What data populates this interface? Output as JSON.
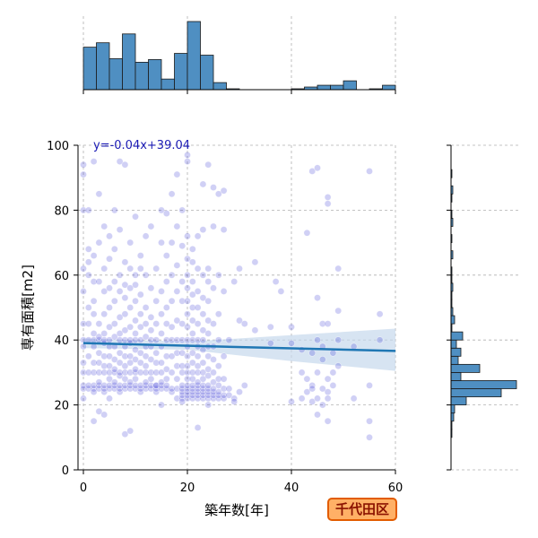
{
  "badge": {
    "label": "千代田区",
    "bg": "#ffb066",
    "border": "#e25c00",
    "text_color": "#8a1200"
  },
  "colors": {
    "point": "#2a2ad0",
    "regression_line": "#1f77b4",
    "ci_band": "#c6d9ec",
    "hist_fill": "#4f8fc2",
    "grid": "#b0b0b0"
  },
  "chart_data": {
    "type": "scatter",
    "title": "",
    "xlabel": "築年数[年]",
    "ylabel": "専有面積[m2]",
    "xlim": [
      0,
      60
    ],
    "ylim": [
      0,
      100
    ],
    "xticks": [
      0,
      20,
      40,
      60
    ],
    "yticks": [
      0,
      20,
      40,
      60,
      80,
      100
    ],
    "grid": true,
    "point_alpha": 0.22,
    "regression": {
      "equation": "y=-0.04x+39.04",
      "slope": -0.04,
      "intercept": 39.04,
      "ci_at_x": [
        [
          0,
          37.5,
          40.5
        ],
        [
          20,
          37.0,
          39.5
        ],
        [
          40,
          33.5,
          41.5
        ],
        [
          60,
          30.5,
          43.5
        ]
      ]
    },
    "points": [
      [
        0,
        26
      ],
      [
        0,
        25
      ],
      [
        0,
        22
      ],
      [
        0,
        30
      ],
      [
        0,
        33
      ],
      [
        0,
        38
      ],
      [
        0,
        40
      ],
      [
        0,
        45
      ],
      [
        0,
        55
      ],
      [
        0,
        62
      ],
      [
        0,
        80
      ],
      [
        0,
        91
      ],
      [
        0,
        94
      ],
      [
        1,
        25
      ],
      [
        1,
        26
      ],
      [
        1,
        30
      ],
      [
        1,
        35
      ],
      [
        1,
        40
      ],
      [
        1,
        45
      ],
      [
        1,
        50
      ],
      [
        1,
        60
      ],
      [
        1,
        64
      ],
      [
        1,
        68
      ],
      [
        1,
        80
      ],
      [
        2,
        25
      ],
      [
        2,
        26
      ],
      [
        2,
        24
      ],
      [
        2,
        30
      ],
      [
        2,
        33
      ],
      [
        2,
        38
      ],
      [
        2,
        40
      ],
      [
        2,
        42
      ],
      [
        2,
        48
      ],
      [
        2,
        52
      ],
      [
        2,
        58
      ],
      [
        2,
        66
      ],
      [
        2,
        95
      ],
      [
        2,
        15
      ],
      [
        3,
        25
      ],
      [
        3,
        26
      ],
      [
        3,
        27
      ],
      [
        3,
        30
      ],
      [
        3,
        33
      ],
      [
        3,
        36
      ],
      [
        3,
        40
      ],
      [
        3,
        41
      ],
      [
        3,
        45
      ],
      [
        3,
        58
      ],
      [
        3,
        70
      ],
      [
        3,
        85
      ],
      [
        3,
        18
      ],
      [
        4,
        24
      ],
      [
        4,
        25
      ],
      [
        4,
        26
      ],
      [
        4,
        30
      ],
      [
        4,
        32
      ],
      [
        4,
        35
      ],
      [
        4,
        39
      ],
      [
        4,
        40
      ],
      [
        4,
        42
      ],
      [
        4,
        48
      ],
      [
        4,
        55
      ],
      [
        4,
        62
      ],
      [
        4,
        75
      ],
      [
        4,
        17
      ],
      [
        5,
        25
      ],
      [
        5,
        26
      ],
      [
        5,
        28
      ],
      [
        5,
        30
      ],
      [
        5,
        32
      ],
      [
        5,
        35
      ],
      [
        5,
        38
      ],
      [
        5,
        40
      ],
      [
        5,
        44
      ],
      [
        5,
        50
      ],
      [
        5,
        56
      ],
      [
        5,
        65
      ],
      [
        5,
        72
      ],
      [
        5,
        22
      ],
      [
        6,
        25
      ],
      [
        6,
        26
      ],
      [
        6,
        27
      ],
      [
        6,
        30
      ],
      [
        6,
        31
      ],
      [
        6,
        34
      ],
      [
        6,
        38
      ],
      [
        6,
        41
      ],
      [
        6,
        45
      ],
      [
        6,
        52
      ],
      [
        6,
        58
      ],
      [
        6,
        68
      ],
      [
        6,
        80
      ],
      [
        7,
        24
      ],
      [
        7,
        25
      ],
      [
        7,
        26
      ],
      [
        7,
        29
      ],
      [
        7,
        30
      ],
      [
        7,
        33
      ],
      [
        7,
        36
      ],
      [
        7,
        40
      ],
      [
        7,
        42
      ],
      [
        7,
        47
      ],
      [
        7,
        55
      ],
      [
        7,
        60
      ],
      [
        7,
        74
      ],
      [
        7,
        95
      ],
      [
        8,
        25
      ],
      [
        8,
        26
      ],
      [
        8,
        28
      ],
      [
        8,
        30
      ],
      [
        8,
        32
      ],
      [
        8,
        35
      ],
      [
        8,
        38
      ],
      [
        8,
        40
      ],
      [
        8,
        43
      ],
      [
        8,
        48
      ],
      [
        8,
        53
      ],
      [
        8,
        57
      ],
      [
        8,
        64
      ],
      [
        8,
        94
      ],
      [
        8,
        11
      ],
      [
        9,
        25
      ],
      [
        9,
        26
      ],
      [
        9,
        27
      ],
      [
        9,
        30
      ],
      [
        9,
        33
      ],
      [
        9,
        35
      ],
      [
        9,
        39
      ],
      [
        9,
        40
      ],
      [
        9,
        44
      ],
      [
        9,
        50
      ],
      [
        9,
        56
      ],
      [
        9,
        62
      ],
      [
        9,
        70
      ],
      [
        9,
        12
      ],
      [
        10,
        25
      ],
      [
        10,
        26
      ],
      [
        10,
        28
      ],
      [
        10,
        30
      ],
      [
        10,
        31
      ],
      [
        10,
        34
      ],
      [
        10,
        37
      ],
      [
        10,
        40
      ],
      [
        10,
        42
      ],
      [
        10,
        46
      ],
      [
        10,
        52
      ],
      [
        10,
        57
      ],
      [
        10,
        60
      ],
      [
        10,
        78
      ],
      [
        11,
        24
      ],
      [
        11,
        25
      ],
      [
        11,
        26
      ],
      [
        11,
        30
      ],
      [
        11,
        33
      ],
      [
        11,
        36
      ],
      [
        11,
        40
      ],
      [
        11,
        44
      ],
      [
        11,
        48
      ],
      [
        11,
        54
      ],
      [
        11,
        62
      ],
      [
        11,
        66
      ],
      [
        12,
        25
      ],
      [
        12,
        26
      ],
      [
        12,
        27
      ],
      [
        12,
        30
      ],
      [
        12,
        32
      ],
      [
        12,
        35
      ],
      [
        12,
        38
      ],
      [
        12,
        41
      ],
      [
        12,
        45
      ],
      [
        12,
        50
      ],
      [
        12,
        60
      ],
      [
        12,
        72
      ],
      [
        13,
        25
      ],
      [
        13,
        26
      ],
      [
        13,
        28
      ],
      [
        13,
        30
      ],
      [
        13,
        34
      ],
      [
        13,
        38
      ],
      [
        13,
        40
      ],
      [
        13,
        43
      ],
      [
        13,
        47
      ],
      [
        13,
        56
      ],
      [
        13,
        75
      ],
      [
        14,
        24
      ],
      [
        14,
        25
      ],
      [
        14,
        26
      ],
      [
        14,
        30
      ],
      [
        14,
        33
      ],
      [
        14,
        36
      ],
      [
        14,
        40
      ],
      [
        14,
        45
      ],
      [
        14,
        52
      ],
      [
        14,
        62
      ],
      [
        14,
        26
      ],
      [
        15,
        25
      ],
      [
        15,
        26
      ],
      [
        15,
        27
      ],
      [
        15,
        30
      ],
      [
        15,
        33
      ],
      [
        15,
        38
      ],
      [
        15,
        42
      ],
      [
        15,
        48
      ],
      [
        15,
        55
      ],
      [
        15,
        70
      ],
      [
        15,
        80
      ],
      [
        15,
        20
      ],
      [
        16,
        25
      ],
      [
        16,
        26
      ],
      [
        16,
        28
      ],
      [
        16,
        31
      ],
      [
        16,
        35
      ],
      [
        16,
        40
      ],
      [
        16,
        45
      ],
      [
        16,
        50
      ],
      [
        16,
        58
      ],
      [
        16,
        66
      ],
      [
        16,
        79
      ],
      [
        17,
        24
      ],
      [
        17,
        25
      ],
      [
        17,
        30
      ],
      [
        17,
        35
      ],
      [
        17,
        40
      ],
      [
        17,
        44
      ],
      [
        17,
        52
      ],
      [
        17,
        60
      ],
      [
        17,
        70
      ],
      [
        17,
        85
      ],
      [
        18,
        22
      ],
      [
        18,
        25
      ],
      [
        18,
        28
      ],
      [
        18,
        32
      ],
      [
        18,
        36
      ],
      [
        18,
        40
      ],
      [
        18,
        46
      ],
      [
        18,
        55
      ],
      [
        18,
        63
      ],
      [
        18,
        75
      ],
      [
        18,
        91
      ],
      [
        19,
        22
      ],
      [
        19,
        23
      ],
      [
        19,
        24
      ],
      [
        19,
        25
      ],
      [
        19,
        26
      ],
      [
        19,
        30
      ],
      [
        19,
        32
      ],
      [
        19,
        36
      ],
      [
        19,
        40
      ],
      [
        19,
        45
      ],
      [
        19,
        52
      ],
      [
        19,
        58
      ],
      [
        19,
        69
      ],
      [
        19,
        80
      ],
      [
        19,
        21
      ],
      [
        20,
        22
      ],
      [
        20,
        23
      ],
      [
        20,
        24
      ],
      [
        20,
        25
      ],
      [
        20,
        26
      ],
      [
        20,
        28
      ],
      [
        20,
        30
      ],
      [
        20,
        32
      ],
      [
        20,
        35
      ],
      [
        20,
        38
      ],
      [
        20,
        40
      ],
      [
        20,
        44
      ],
      [
        20,
        48
      ],
      [
        20,
        52
      ],
      [
        20,
        56
      ],
      [
        20,
        60
      ],
      [
        20,
        65
      ],
      [
        20,
        72
      ],
      [
        20,
        97
      ],
      [
        20,
        95
      ],
      [
        21,
        22
      ],
      [
        21,
        23
      ],
      [
        21,
        24
      ],
      [
        21,
        25
      ],
      [
        21,
        26
      ],
      [
        21,
        28
      ],
      [
        21,
        30
      ],
      [
        21,
        33
      ],
      [
        21,
        36
      ],
      [
        21,
        40
      ],
      [
        21,
        42
      ],
      [
        21,
        46
      ],
      [
        21,
        50
      ],
      [
        21,
        54
      ],
      [
        21,
        58
      ],
      [
        21,
        64
      ],
      [
        21,
        68
      ],
      [
        22,
        22
      ],
      [
        22,
        23
      ],
      [
        22,
        24
      ],
      [
        22,
        25
      ],
      [
        22,
        26
      ],
      [
        22,
        27
      ],
      [
        22,
        30
      ],
      [
        22,
        32
      ],
      [
        22,
        35
      ],
      [
        22,
        38
      ],
      [
        22,
        40
      ],
      [
        22,
        45
      ],
      [
        22,
        50
      ],
      [
        22,
        55
      ],
      [
        22,
        62
      ],
      [
        22,
        72
      ],
      [
        22,
        13
      ],
      [
        23,
        22
      ],
      [
        23,
        23
      ],
      [
        23,
        24
      ],
      [
        23,
        25
      ],
      [
        23,
        26
      ],
      [
        23,
        28
      ],
      [
        23,
        30
      ],
      [
        23,
        33
      ],
      [
        23,
        37
      ],
      [
        23,
        40
      ],
      [
        23,
        43
      ],
      [
        23,
        48
      ],
      [
        23,
        53
      ],
      [
        23,
        60
      ],
      [
        23,
        74
      ],
      [
        23,
        88
      ],
      [
        24,
        22
      ],
      [
        24,
        23
      ],
      [
        24,
        24
      ],
      [
        24,
        25
      ],
      [
        24,
        26
      ],
      [
        24,
        29
      ],
      [
        24,
        31
      ],
      [
        24,
        35
      ],
      [
        24,
        38
      ],
      [
        24,
        42
      ],
      [
        24,
        46
      ],
      [
        24,
        52
      ],
      [
        24,
        58
      ],
      [
        24,
        62
      ],
      [
        24,
        94
      ],
      [
        24,
        20
      ],
      [
        25,
        22
      ],
      [
        25,
        23
      ],
      [
        25,
        24
      ],
      [
        25,
        25
      ],
      [
        25,
        27
      ],
      [
        25,
        30
      ],
      [
        25,
        34
      ],
      [
        25,
        38
      ],
      [
        25,
        45
      ],
      [
        25,
        56
      ],
      [
        25,
        75
      ],
      [
        25,
        87
      ],
      [
        26,
        22
      ],
      [
        26,
        23
      ],
      [
        26,
        24
      ],
      [
        26,
        26
      ],
      [
        26,
        28
      ],
      [
        26,
        32
      ],
      [
        26,
        40
      ],
      [
        26,
        48
      ],
      [
        26,
        60
      ],
      [
        26,
        85
      ],
      [
        27,
        22
      ],
      [
        27,
        23
      ],
      [
        27,
        25
      ],
      [
        27,
        28
      ],
      [
        27,
        35
      ],
      [
        27,
        55
      ],
      [
        27,
        74
      ],
      [
        27,
        86
      ],
      [
        28,
        23
      ],
      [
        28,
        25
      ],
      [
        28,
        40
      ],
      [
        29,
        22
      ],
      [
        29,
        58
      ],
      [
        29,
        21
      ],
      [
        30,
        24
      ],
      [
        30,
        62
      ],
      [
        30,
        46
      ],
      [
        31,
        26
      ],
      [
        31,
        45
      ],
      [
        33,
        64
      ],
      [
        33,
        43
      ],
      [
        36,
        44
      ],
      [
        36,
        39
      ],
      [
        37,
        58
      ],
      [
        38,
        55
      ],
      [
        40,
        21
      ],
      [
        40,
        44
      ],
      [
        40,
        39
      ],
      [
        42,
        22
      ],
      [
        42,
        30
      ],
      [
        42,
        37
      ],
      [
        43,
        24
      ],
      [
        43,
        73
      ],
      [
        43,
        28
      ],
      [
        44,
        26
      ],
      [
        44,
        21
      ],
      [
        44,
        36
      ],
      [
        44,
        25
      ],
      [
        44,
        92
      ],
      [
        45,
        22
      ],
      [
        45,
        30
      ],
      [
        45,
        40
      ],
      [
        45,
        53
      ],
      [
        45,
        93
      ],
      [
        45,
        17
      ],
      [
        46,
        20
      ],
      [
        46,
        25
      ],
      [
        46,
        34
      ],
      [
        46,
        45
      ],
      [
        46,
        38
      ],
      [
        47,
        15
      ],
      [
        47,
        22
      ],
      [
        47,
        24
      ],
      [
        47,
        28
      ],
      [
        47,
        45
      ],
      [
        47,
        82
      ],
      [
        47,
        84
      ],
      [
        48,
        26
      ],
      [
        48,
        36
      ],
      [
        48,
        30
      ],
      [
        49,
        32
      ],
      [
        49,
        40
      ],
      [
        49,
        62
      ],
      [
        49,
        49
      ],
      [
        52,
        38
      ],
      [
        52,
        22
      ],
      [
        55,
        15
      ],
      [
        55,
        10
      ],
      [
        55,
        92
      ],
      [
        55,
        26
      ],
      [
        57,
        48
      ],
      [
        57,
        40
      ]
    ],
    "top_hist": {
      "bin_width": 2.5,
      "bin_start": 0,
      "counts": [
        48,
        53,
        35,
        63,
        31,
        34,
        12,
        41,
        77,
        39,
        8,
        1,
        0,
        0,
        0,
        0,
        1,
        3,
        5,
        5,
        10,
        0,
        1,
        5,
        0
      ]
    },
    "right_hist": {
      "bin_width": 2.5,
      "bin_start": 0,
      "y_start": 10,
      "counts": [
        1,
        1,
        3,
        4,
        17,
        56,
        73,
        11,
        32,
        8,
        11,
        6,
        13,
        1,
        4,
        2,
        1,
        1,
        2,
        1,
        1,
        0,
        2,
        0,
        1,
        0,
        2,
        1,
        0,
        1,
        2,
        0,
        1
      ]
    }
  }
}
